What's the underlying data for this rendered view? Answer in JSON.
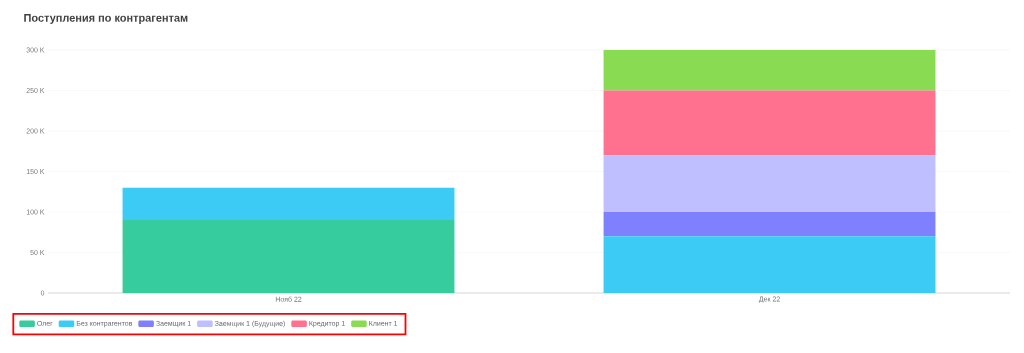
{
  "chart_data": {
    "type": "bar",
    "title": "Поступления по контрагентам",
    "categories": [
      "Нояб 22",
      "Дек 22"
    ],
    "stacked": true,
    "series": [
      {
        "name": "Олег",
        "color": "#36cc9e",
        "values": [
          90000,
          0
        ]
      },
      {
        "name": "Без контрагентов",
        "color": "#3bcbf5",
        "values": [
          40000,
          70000
        ]
      },
      {
        "name": "Заемщик 1",
        "color": "#7f80fe",
        "values": [
          0,
          30000
        ]
      },
      {
        "name": "Заемщик 1  (Будущие)",
        "color": "#bfbfff",
        "values": [
          0,
          70000
        ]
      },
      {
        "name": "Кредитор 1",
        "color": "#ff718f",
        "values": [
          0,
          80000
        ]
      },
      {
        "name": "Клиент 1",
        "color": "#89dc52",
        "values": [
          0,
          50000
        ]
      }
    ],
    "ylim": [
      0,
      300000
    ],
    "yticks": [
      0,
      {
        "value": 50000,
        "label": "50 K"
      },
      {
        "value": 100000,
        "label": "100 K"
      },
      {
        "value": 150000,
        "label": "150 K"
      },
      {
        "value": 200000,
        "label": "200 K"
      },
      {
        "value": 250000,
        "label": "250 K"
      },
      {
        "value": 300000,
        "label": "300 K"
      }
    ],
    "grid": "y",
    "legend": "bottom"
  }
}
